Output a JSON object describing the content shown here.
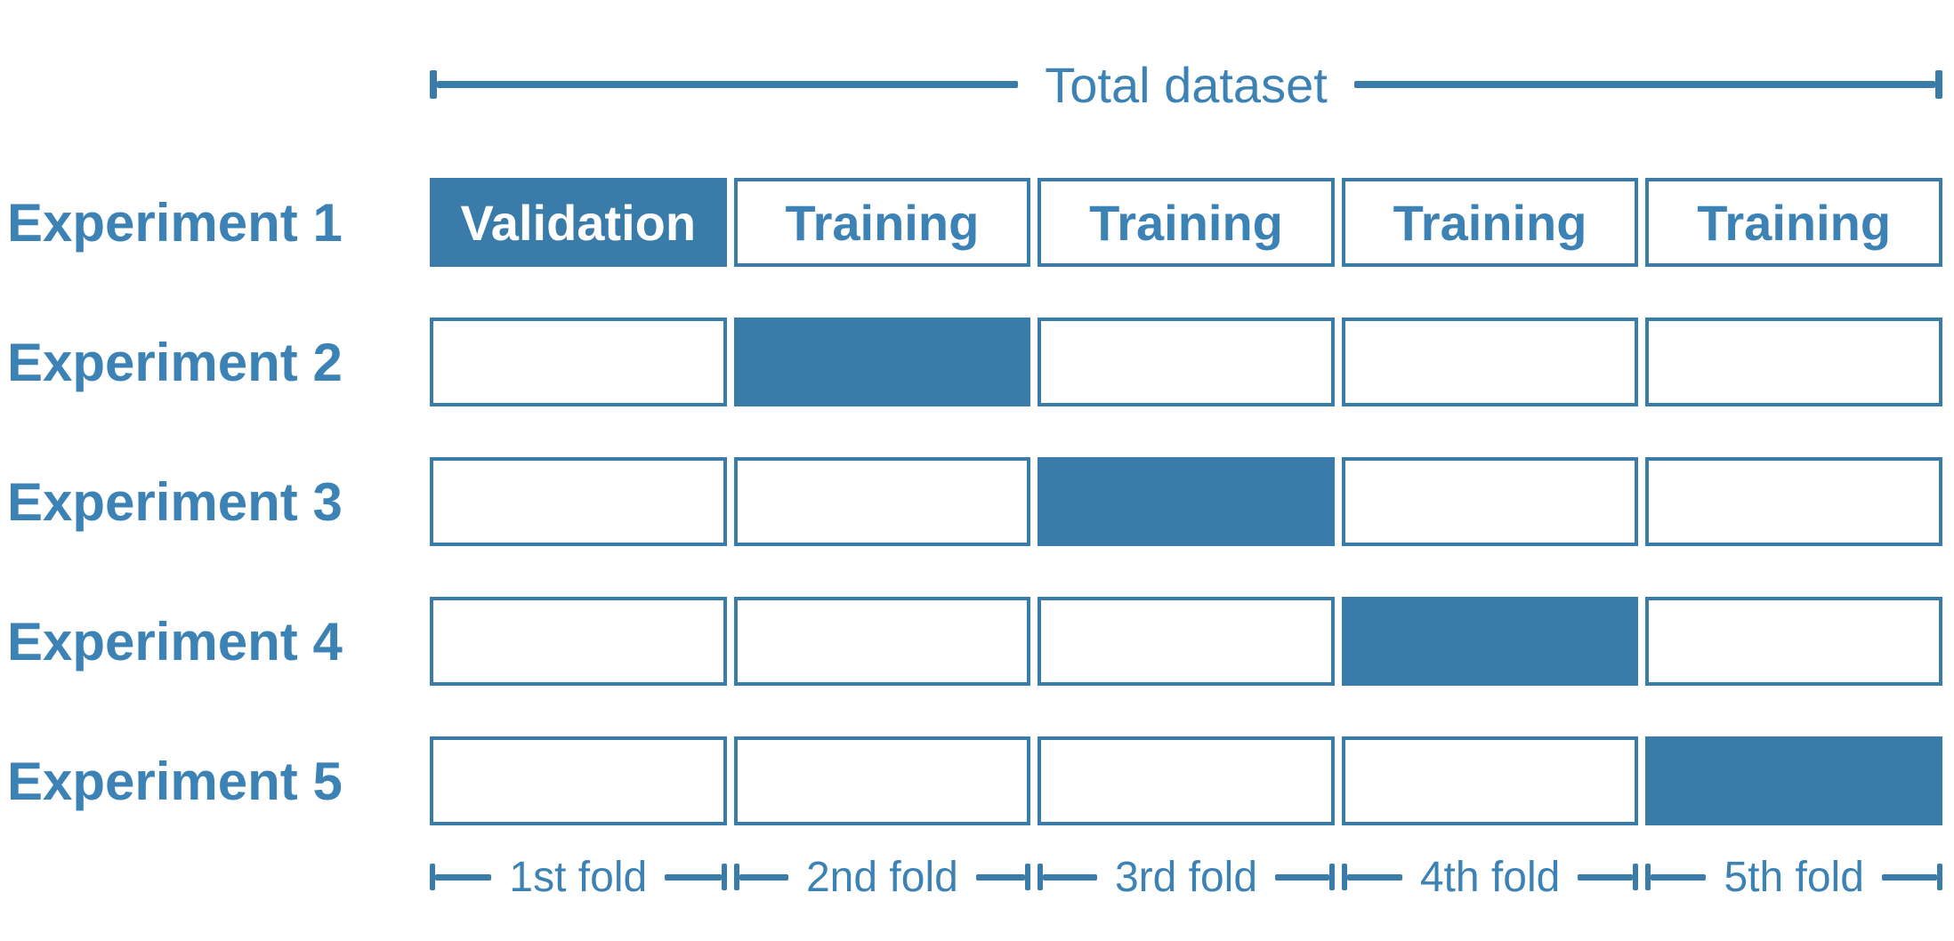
{
  "colors": {
    "accent": "#3C82B4",
    "fill": "#3A7CA9",
    "border": "#3A7CA9",
    "filled_text": "#FFFFFF"
  },
  "header": {
    "label": "Total dataset"
  },
  "experiments": [
    {
      "label": "Experiment 1",
      "cells": [
        {
          "text": "Validation",
          "filled": true
        },
        {
          "text": "Training",
          "filled": false
        },
        {
          "text": "Training",
          "filled": false
        },
        {
          "text": "Training",
          "filled": false
        },
        {
          "text": "Training",
          "filled": false
        }
      ]
    },
    {
      "label": "Experiment 2",
      "cells": [
        {
          "text": "",
          "filled": false
        },
        {
          "text": "",
          "filled": true
        },
        {
          "text": "",
          "filled": false
        },
        {
          "text": "",
          "filled": false
        },
        {
          "text": "",
          "filled": false
        }
      ]
    },
    {
      "label": "Experiment 3",
      "cells": [
        {
          "text": "",
          "filled": false
        },
        {
          "text": "",
          "filled": false
        },
        {
          "text": "",
          "filled": true
        },
        {
          "text": "",
          "filled": false
        },
        {
          "text": "",
          "filled": false
        }
      ]
    },
    {
      "label": "Experiment 4",
      "cells": [
        {
          "text": "",
          "filled": false
        },
        {
          "text": "",
          "filled": false
        },
        {
          "text": "",
          "filled": false
        },
        {
          "text": "",
          "filled": true
        },
        {
          "text": "",
          "filled": false
        }
      ]
    },
    {
      "label": "Experiment 5",
      "cells": [
        {
          "text": "",
          "filled": false
        },
        {
          "text": "",
          "filled": false
        },
        {
          "text": "",
          "filled": false
        },
        {
          "text": "",
          "filled": false
        },
        {
          "text": "",
          "filled": true
        }
      ]
    }
  ],
  "folds": [
    "1st fold",
    "2nd fold",
    "3rd fold",
    "4th fold",
    "5th fold"
  ]
}
